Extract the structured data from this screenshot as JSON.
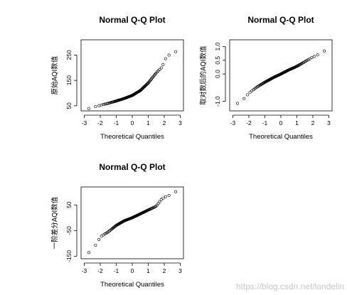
{
  "watermark": "https://blog.csdn.net/landelin",
  "chart_data": [
    {
      "type": "scatter",
      "title": "Normal Q-Q Plot",
      "xlabel": "Theoretical Quantiles",
      "ylabel": "原始AQI数值",
      "xlim": [
        -3.2,
        3.2
      ],
      "ylim": [
        30,
        310
      ],
      "xticks": [
        -3,
        -2,
        -1,
        0,
        1,
        2,
        3
      ],
      "yticks": [
        50,
        150,
        250
      ],
      "grid": false,
      "knots": [
        [
          -3.0,
          35
        ],
        [
          -2.5,
          43
        ],
        [
          -2.0,
          52
        ],
        [
          -1.5,
          60
        ],
        [
          -1.0,
          69
        ],
        [
          -0.5,
          79
        ],
        [
          0.0,
          91
        ],
        [
          0.5,
          110
        ],
        [
          1.0,
          140
        ],
        [
          1.5,
          180
        ],
        [
          1.9,
          205
        ],
        [
          2.0,
          230
        ],
        [
          2.3,
          250
        ],
        [
          2.7,
          262
        ],
        [
          3.0,
          290
        ]
      ],
      "n_points": 110
    },
    {
      "type": "scatter",
      "title": "Normal Q-Q Plot",
      "xlabel": "Theoretical Quantiles",
      "ylabel": "取对数后的AQI数值",
      "xlim": [
        -3.2,
        3.2
      ],
      "ylim": [
        -1.35,
        1.25
      ],
      "xticks": [
        -3,
        -2,
        -1,
        0,
        1,
        2,
        3
      ],
      "yticks": [
        -1.0,
        0.0,
        0.5,
        1.0
      ],
      "ytick_labels": [
        "-1.0",
        "0.0",
        "0.5",
        "1.0"
      ],
      "grid": false,
      "knots": [
        [
          -3.0,
          -1.15
        ],
        [
          -2.6,
          -1.05
        ],
        [
          -2.2,
          -0.85
        ],
        [
          -2.0,
          -0.7
        ],
        [
          -1.5,
          -0.48
        ],
        [
          -1.0,
          -0.3
        ],
        [
          -0.5,
          -0.14
        ],
        [
          0.0,
          0.0
        ],
        [
          0.5,
          0.15
        ],
        [
          1.0,
          0.28
        ],
        [
          1.5,
          0.45
        ],
        [
          2.0,
          0.62
        ],
        [
          2.5,
          0.75
        ],
        [
          2.8,
          0.88
        ],
        [
          3.0,
          1.13
        ]
      ],
      "n_points": 110
    },
    {
      "type": "scatter",
      "title": "Normal Q-Q Plot",
      "xlabel": "Theoretical Quantiles",
      "ylabel": "一阶差分AQI数值",
      "xlim": [
        -3.2,
        3.2
      ],
      "ylim": [
        -160,
        120
      ],
      "xticks": [
        -3,
        -2,
        -1,
        0,
        1,
        2,
        3
      ],
      "yticks": [
        -150,
        -50,
        50
      ],
      "grid": false,
      "knots": [
        [
          -3.0,
          -150
        ],
        [
          -2.6,
          -130
        ],
        [
          -2.2,
          -100
        ],
        [
          -2.0,
          -75
        ],
        [
          -1.5,
          -55
        ],
        [
          -1.0,
          -30
        ],
        [
          -0.5,
          -12
        ],
        [
          0.0,
          0
        ],
        [
          0.5,
          15
        ],
        [
          1.0,
          30
        ],
        [
          1.5,
          45
        ],
        [
          1.8,
          70
        ],
        [
          2.0,
          80
        ],
        [
          2.5,
          92
        ],
        [
          2.8,
          105
        ],
        [
          3.0,
          110
        ]
      ],
      "n_points": 110
    }
  ]
}
